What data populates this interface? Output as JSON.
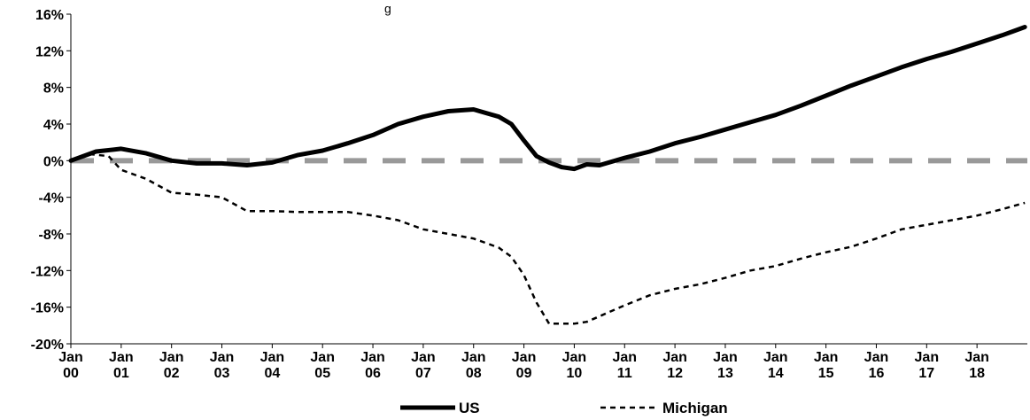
{
  "chart_data": {
    "type": "line",
    "title_fragment": "g",
    "xlabel": "",
    "ylabel": "",
    "ylim": [
      -20,
      16
    ],
    "y_ticks": [
      16,
      12,
      8,
      4,
      0,
      -4,
      -8,
      -12,
      -16,
      -20
    ],
    "y_tick_labels": [
      "16%",
      "12%",
      "8%",
      "4%",
      "0%",
      "-4%",
      "-8%",
      "-12%",
      "-16%",
      "-20%"
    ],
    "x_tick_labels": [
      [
        "Jan",
        "00"
      ],
      [
        "Jan",
        "01"
      ],
      [
        "Jan",
        "02"
      ],
      [
        "Jan",
        "03"
      ],
      [
        "Jan",
        "04"
      ],
      [
        "Jan",
        "05"
      ],
      [
        "Jan",
        "06"
      ],
      [
        "Jan",
        "07"
      ],
      [
        "Jan",
        "08"
      ],
      [
        "Jan",
        "09"
      ],
      [
        "Jan",
        "10"
      ],
      [
        "Jan",
        "11"
      ],
      [
        "Jan",
        "12"
      ],
      [
        "Jan",
        "13"
      ],
      [
        "Jan",
        "14"
      ],
      [
        "Jan",
        "15"
      ],
      [
        "Jan",
        "16"
      ],
      [
        "Jan",
        "17"
      ],
      [
        "Jan",
        "18"
      ]
    ],
    "x_range_years": [
      2000,
      2019
    ],
    "reference_line": {
      "y": 0,
      "color": "#999999",
      "style": "dashed"
    },
    "legend_position": "bottom-center",
    "series": [
      {
        "name": "US",
        "style": "solid",
        "color": "#000000",
        "x": [
          2000,
          2000.5,
          2001,
          2001.5,
          2002,
          2002.5,
          2003,
          2003.5,
          2004,
          2004.5,
          2005,
          2005.5,
          2006,
          2006.5,
          2007,
          2007.5,
          2008,
          2008.5,
          2008.75,
          2009,
          2009.25,
          2009.5,
          2009.75,
          2010,
          2010.25,
          2010.5,
          2011,
          2011.5,
          2012,
          2012.5,
          2013,
          2013.5,
          2014,
          2014.5,
          2015,
          2015.5,
          2016,
          2016.5,
          2017,
          2017.5,
          2018,
          2018.5,
          2018.95
        ],
        "values": [
          0,
          1.0,
          1.3,
          0.8,
          0,
          -0.3,
          -0.3,
          -0.5,
          -0.2,
          0.6,
          1.1,
          1.9,
          2.8,
          4.0,
          4.8,
          5.4,
          5.6,
          4.8,
          4.0,
          2.2,
          0.5,
          -0.2,
          -0.7,
          -0.9,
          -0.4,
          -0.5,
          0.3,
          1.0,
          1.9,
          2.6,
          3.4,
          4.2,
          5.0,
          6.0,
          7.1,
          8.2,
          9.2,
          10.2,
          11.1,
          11.9,
          12.8,
          13.7,
          14.6
        ]
      },
      {
        "name": "Michigan",
        "style": "dashed",
        "color": "#000000",
        "x": [
          2000,
          2000.4,
          2000.75,
          2001,
          2001.5,
          2002,
          2002.5,
          2003,
          2003.5,
          2004,
          2004.5,
          2005,
          2005.5,
          2006,
          2006.5,
          2007,
          2007.5,
          2008,
          2008.5,
          2008.75,
          2009,
          2009.25,
          2009.5,
          2009.75,
          2010,
          2010.25,
          2010.5,
          2011,
          2011.5,
          2012,
          2012.5,
          2013,
          2013.5,
          2014,
          2014.5,
          2015,
          2015.5,
          2016,
          2016.5,
          2017,
          2017.5,
          2018,
          2018.5,
          2018.95
        ],
        "values": [
          0,
          0.7,
          0.5,
          -1.0,
          -2.0,
          -3.5,
          -3.7,
          -4.0,
          -5.5,
          -5.5,
          -5.6,
          -5.6,
          -5.6,
          -6.0,
          -6.5,
          -7.5,
          -8.0,
          -8.5,
          -9.5,
          -10.5,
          -12.5,
          -15.5,
          -17.8,
          -17.8,
          -17.8,
          -17.6,
          -17.0,
          -15.8,
          -14.7,
          -14.0,
          -13.5,
          -12.8,
          -12.0,
          -11.5,
          -10.7,
          -10.0,
          -9.4,
          -8.5,
          -7.5,
          -7.0,
          -6.5,
          -6.0,
          -5.3,
          -4.6
        ]
      }
    ]
  }
}
